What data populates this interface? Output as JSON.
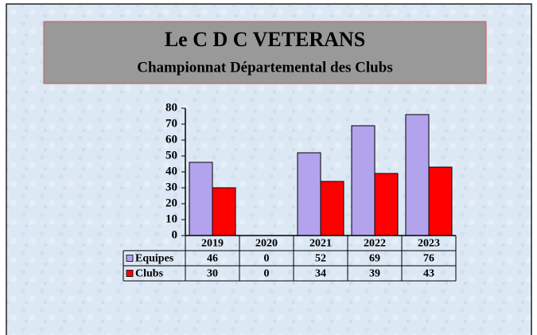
{
  "chart_data": {
    "type": "bar",
    "title": "Le  C D C  VETERANS",
    "subtitle": "Championnat Départemental des Clubs",
    "categories": [
      "2019",
      "2020",
      "2021",
      "2022",
      "2023"
    ],
    "series": [
      {
        "name": "Equipes",
        "color": "#b3a2ec",
        "values": [
          46,
          0,
          52,
          69,
          76
        ]
      },
      {
        "name": "Clubs",
        "color": "#ff0000",
        "values": [
          30,
          0,
          34,
          39,
          43
        ]
      }
    ],
    "ylim": [
      0,
      80
    ],
    "yticks": [
      0,
      10,
      20,
      30,
      40,
      50,
      60,
      70,
      80
    ]
  }
}
